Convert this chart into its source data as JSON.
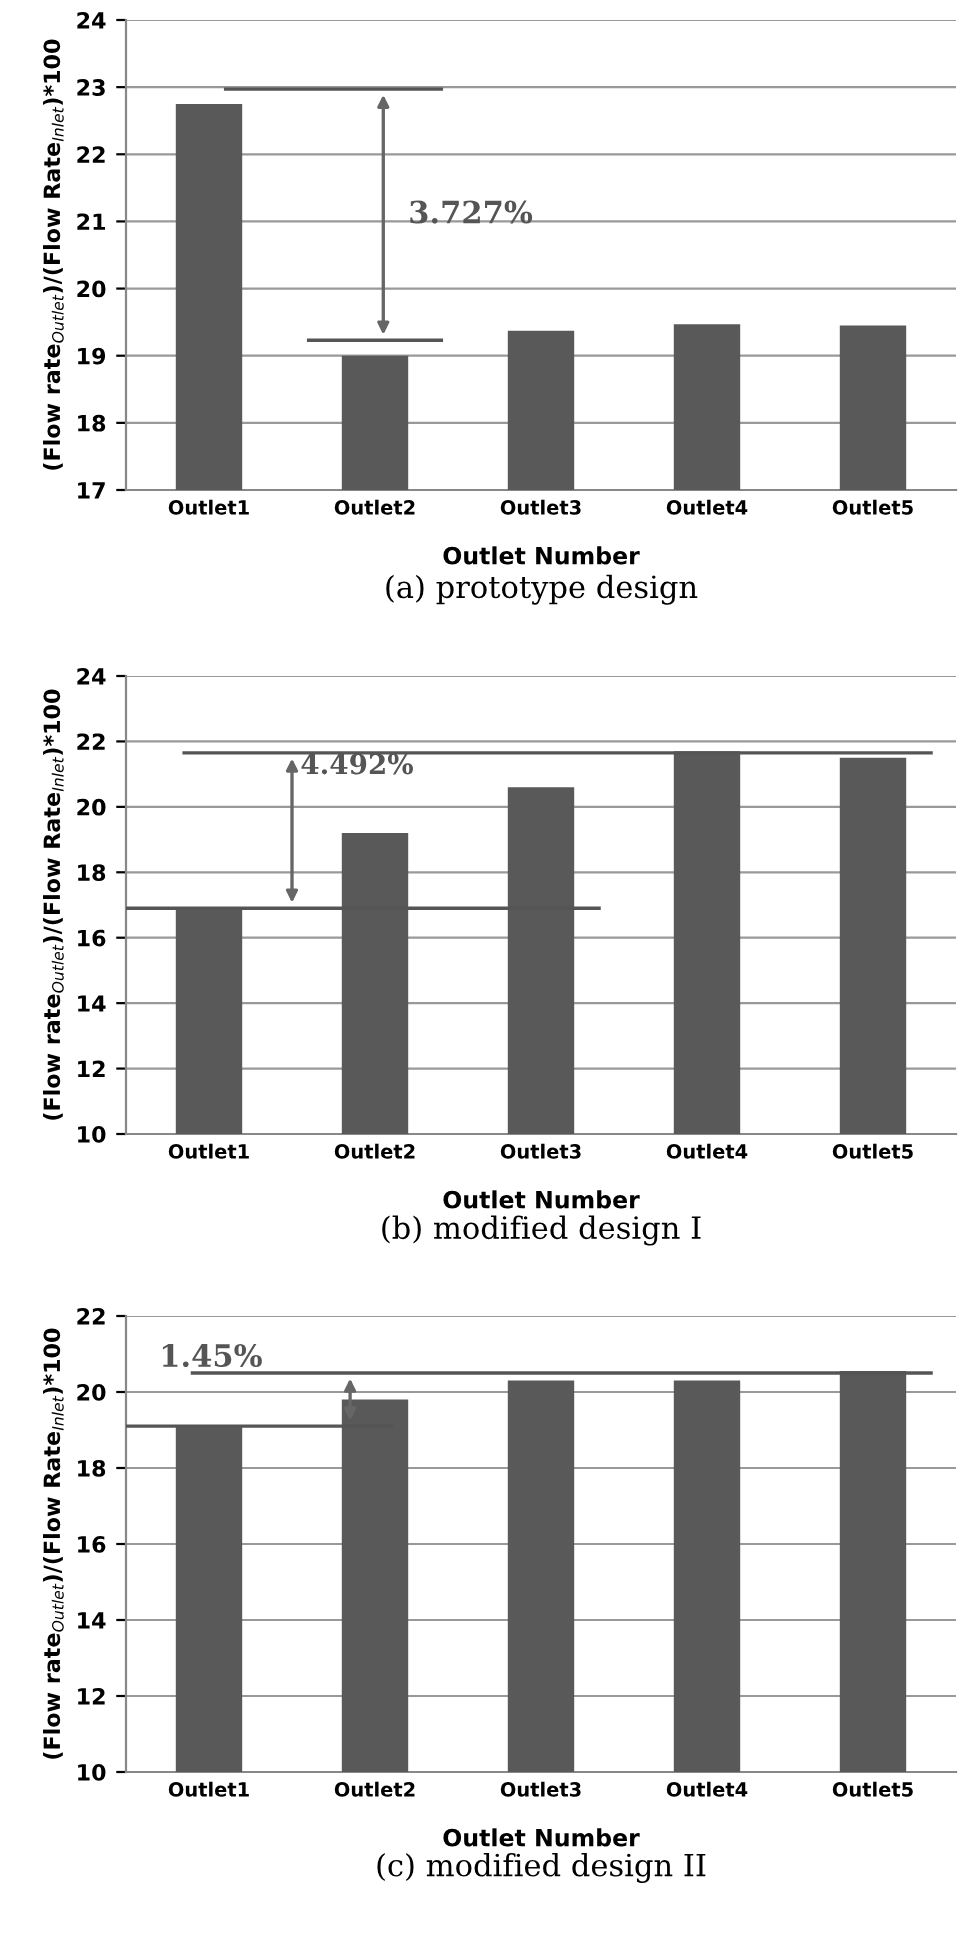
{
  "chart_data": [
    {
      "type": "bar",
      "title": "(a) prototype design",
      "xlabel": "Outlet Number",
      "ylabel": "(Flow rate$_{Outlet}$)/(Flow Rate$_{Inlet}$)*100",
      "categories": [
        "Outlet1",
        "Outlet2",
        "Outlet3",
        "Outlet4",
        "Outlet5"
      ],
      "values": [
        22.75,
        19.0,
        19.37,
        19.47,
        19.45
      ],
      "color": "#595959",
      "ylim": [
        17,
        24
      ],
      "yticks": [
        17,
        18,
        19,
        20,
        21,
        22,
        23,
        24
      ],
      "grid": "y",
      "annotations": [
        "3.727%"
      ],
      "ref_lines": [
        {
          "axis": "y",
          "value": 22.97,
          "color": "#555555"
        },
        {
          "axis": "y",
          "value": 19.23,
          "color": "#555555"
        }
      ]
    },
    {
      "type": "bar",
      "title": "(b) modified design I",
      "xlabel": "Outlet Number",
      "ylabel": "(Flow rate$_{Outlet}$)/(Flow Rate$_{Inlet}$)*100",
      "categories": [
        "Outlet1",
        "Outlet2",
        "Outlet3",
        "Outlet4",
        "Outlet5"
      ],
      "values": [
        16.9,
        19.2,
        20.6,
        21.7,
        21.5
      ],
      "color": "#595959",
      "ylim": [
        10,
        24
      ],
      "yticks": [
        10,
        12,
        14,
        16,
        18,
        20,
        22,
        24
      ],
      "grid": "y",
      "annotations": [
        "4.492%"
      ],
      "ref_lines": [
        {
          "axis": "y",
          "value": 21.65,
          "color": "#555555"
        },
        {
          "axis": "y",
          "value": 16.9,
          "color": "#555555"
        }
      ]
    },
    {
      "type": "bar",
      "title": "(c) modified design II",
      "xlabel": "Outlet Number",
      "ylabel": "(Flow rate$_{Outlet}$)/(Flow Rate$_{Inlet}$)*100",
      "categories": [
        "Outlet1",
        "Outlet2",
        "Outlet3",
        "Outlet4",
        "Outlet5"
      ],
      "values": [
        19.1,
        19.8,
        20.3,
        20.3,
        20.55
      ],
      "color": "#595959",
      "ylim": [
        10,
        22
      ],
      "yticks": [
        10,
        12,
        14,
        16,
        18,
        20,
        22
      ],
      "grid": "y",
      "annotations": [
        "1.45%"
      ],
      "ref_lines": [
        {
          "axis": "y",
          "value": 20.5,
          "color": "#555555"
        },
        {
          "axis": "y",
          "value": 19.1,
          "color": "#555555"
        }
      ]
    }
  ]
}
